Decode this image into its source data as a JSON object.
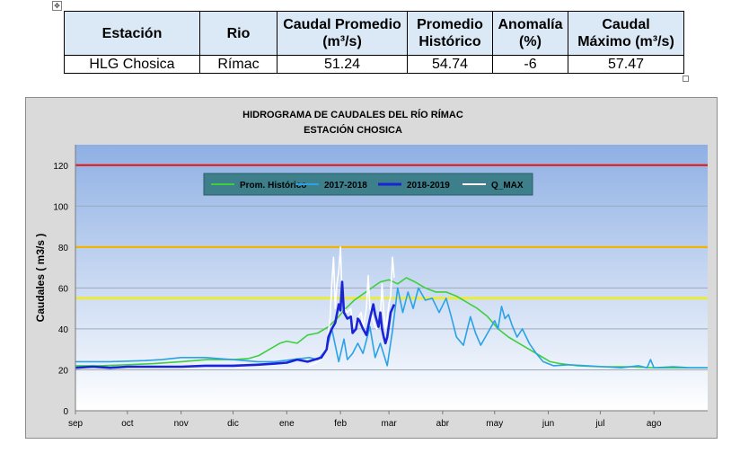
{
  "table": {
    "headers": [
      {
        "main": "Estación"
      },
      {
        "main": "Rio"
      },
      {
        "main": "Caudal Promedio",
        "unit": "(m³/s)"
      },
      {
        "main": "Promedio",
        "unit": "Histórico"
      },
      {
        "main": "Anomalía",
        "unit": "(%)"
      },
      {
        "main": "Caudal",
        "unit": "Máximo (m³/s)"
      }
    ],
    "row": [
      "HLG Chosica",
      "Rímac",
      "51.24",
      "54.74",
      "-6",
      "57.47"
    ]
  },
  "chart_data": {
    "type": "line",
    "title": "HIDROGRAMA DE CAUDALES DEL RÍO RÍMAC",
    "subtitle": "ESTACIÓN CHOSICA",
    "xlabel": "",
    "ylabel": "Caudales ( m3/s )",
    "ylim": [
      0,
      130
    ],
    "yticks": [
      0,
      20,
      40,
      60,
      80,
      100,
      120
    ],
    "xlim": [
      0,
      365
    ],
    "month_labels": [
      "sep",
      "oct",
      "nov",
      "dic",
      "ene",
      "feb",
      "mar",
      "abr",
      "may",
      "jun",
      "jul",
      "ago"
    ],
    "month_starts": [
      0,
      30,
      61,
      91,
      122,
      153,
      181,
      212,
      242,
      273,
      303,
      334
    ],
    "grid": true,
    "legend_position": "top-center",
    "reference_lines": [
      {
        "y": 120,
        "color": "#e02020"
      },
      {
        "y": 80,
        "color": "#f2b400"
      },
      {
        "y": 55,
        "color": "#f5f000"
      }
    ],
    "series": [
      {
        "name": "Prom. Histórico",
        "color": "#3ecf3e",
        "points": [
          [
            0,
            22
          ],
          [
            15,
            22
          ],
          [
            30,
            22.5
          ],
          [
            45,
            23
          ],
          [
            61,
            24
          ],
          [
            76,
            25
          ],
          [
            91,
            25
          ],
          [
            100,
            25.5
          ],
          [
            106,
            27
          ],
          [
            112,
            30
          ],
          [
            118,
            33
          ],
          [
            122,
            34
          ],
          [
            128,
            33
          ],
          [
            134,
            37
          ],
          [
            140,
            38
          ],
          [
            146,
            41
          ],
          [
            151,
            45
          ],
          [
            156,
            50
          ],
          [
            161,
            54
          ],
          [
            166,
            57
          ],
          [
            171,
            60
          ],
          [
            176,
            63
          ],
          [
            181,
            64
          ],
          [
            186,
            62
          ],
          [
            191,
            65
          ],
          [
            196,
            63
          ],
          [
            202,
            60
          ],
          [
            208,
            58
          ],
          [
            214,
            58
          ],
          [
            220,
            56
          ],
          [
            226,
            53
          ],
          [
            232,
            50
          ],
          [
            238,
            46
          ],
          [
            244,
            40
          ],
          [
            250,
            36
          ],
          [
            256,
            33
          ],
          [
            262,
            30
          ],
          [
            268,
            27
          ],
          [
            274,
            24
          ],
          [
            280,
            23
          ],
          [
            290,
            22
          ],
          [
            303,
            21.5
          ],
          [
            320,
            21.5
          ],
          [
            334,
            21
          ],
          [
            350,
            21
          ],
          [
            365,
            21
          ]
        ]
      },
      {
        "name": "2017-2018",
        "color": "#2aa2e6",
        "points": [
          [
            0,
            24
          ],
          [
            20,
            24
          ],
          [
            40,
            24.5
          ],
          [
            50,
            25
          ],
          [
            61,
            26
          ],
          [
            75,
            26
          ],
          [
            91,
            25
          ],
          [
            105,
            24
          ],
          [
            115,
            24
          ],
          [
            125,
            25
          ],
          [
            135,
            26
          ],
          [
            140,
            25
          ],
          [
            145,
            30
          ],
          [
            148,
            40
          ],
          [
            150,
            32
          ],
          [
            152,
            24
          ],
          [
            155,
            35
          ],
          [
            157,
            25
          ],
          [
            160,
            28
          ],
          [
            163,
            33
          ],
          [
            166,
            28
          ],
          [
            170,
            41
          ],
          [
            173,
            26
          ],
          [
            176,
            33
          ],
          [
            180,
            22
          ],
          [
            183,
            39
          ],
          [
            186,
            60
          ],
          [
            189,
            48
          ],
          [
            192,
            58
          ],
          [
            195,
            50
          ],
          [
            198,
            60
          ],
          [
            202,
            54
          ],
          [
            206,
            55
          ],
          [
            210,
            48
          ],
          [
            214,
            55
          ],
          [
            217,
            46
          ],
          [
            220,
            36
          ],
          [
            224,
            32
          ],
          [
            228,
            46
          ],
          [
            231,
            38
          ],
          [
            234,
            32
          ],
          [
            238,
            38
          ],
          [
            242,
            44
          ],
          [
            244,
            40
          ],
          [
            246,
            51
          ],
          [
            248,
            45
          ],
          [
            250,
            47
          ],
          [
            252,
            42
          ],
          [
            255,
            36
          ],
          [
            258,
            40
          ],
          [
            262,
            33
          ],
          [
            266,
            28
          ],
          [
            270,
            24
          ],
          [
            276,
            22
          ],
          [
            285,
            22.5
          ],
          [
            295,
            22
          ],
          [
            305,
            21.5
          ],
          [
            315,
            21
          ],
          [
            325,
            22
          ],
          [
            330,
            21
          ],
          [
            332,
            25
          ],
          [
            334,
            21
          ],
          [
            345,
            21.5
          ],
          [
            355,
            21
          ],
          [
            365,
            21
          ]
        ]
      },
      {
        "name": "2018-2019",
        "color": "#1a24d6",
        "points": [
          [
            0,
            21
          ],
          [
            10,
            21.5
          ],
          [
            20,
            21
          ],
          [
            30,
            21.5
          ],
          [
            45,
            21.5
          ],
          [
            61,
            21.5
          ],
          [
            75,
            22
          ],
          [
            91,
            22
          ],
          [
            105,
            22.5
          ],
          [
            115,
            23
          ],
          [
            122,
            23.5
          ],
          [
            128,
            25
          ],
          [
            134,
            24
          ],
          [
            138,
            25
          ],
          [
            142,
            26
          ],
          [
            145,
            30
          ],
          [
            146,
            36
          ],
          [
            148,
            40
          ],
          [
            150,
            43
          ],
          [
            152,
            52
          ],
          [
            153,
            49
          ],
          [
            154,
            63
          ],
          [
            155,
            48
          ],
          [
            157,
            45
          ],
          [
            159,
            46
          ],
          [
            160,
            38
          ],
          [
            162,
            40
          ],
          [
            163,
            45
          ],
          [
            164,
            44
          ],
          [
            166,
            40
          ],
          [
            168,
            37
          ],
          [
            170,
            45
          ],
          [
            172,
            52
          ],
          [
            173,
            47
          ],
          [
            175,
            41
          ],
          [
            176,
            48
          ],
          [
            177,
            40
          ],
          [
            178,
            36
          ],
          [
            179,
            33
          ],
          [
            180,
            36
          ],
          [
            182,
            48
          ],
          [
            184,
            52
          ]
        ]
      },
      {
        "name": "Q_MAX",
        "color": "#ffffff",
        "points": [
          [
            135,
            22
          ],
          [
            140,
            24
          ],
          [
            143,
            26
          ],
          [
            145,
            32
          ],
          [
            147,
            45
          ],
          [
            148,
            62
          ],
          [
            149,
            75
          ],
          [
            150,
            50
          ],
          [
            151,
            62
          ],
          [
            152,
            68
          ],
          [
            153,
            80
          ],
          [
            154,
            55
          ],
          [
            155,
            50
          ],
          [
            157,
            48
          ],
          [
            159,
            50
          ],
          [
            160,
            40
          ],
          [
            162,
            44
          ],
          [
            163,
            45
          ],
          [
            165,
            48
          ],
          [
            166,
            40
          ],
          [
            168,
            50
          ],
          [
            169,
            66
          ],
          [
            170,
            50
          ],
          [
            172,
            44
          ],
          [
            173,
            41
          ],
          [
            174,
            40
          ],
          [
            175,
            42
          ],
          [
            176,
            45
          ],
          [
            177,
            62
          ],
          [
            178,
            48
          ],
          [
            179,
            40
          ],
          [
            180,
            45
          ],
          [
            181,
            52
          ],
          [
            182,
            56
          ],
          [
            183,
            75
          ],
          [
            184,
            65
          ]
        ]
      }
    ]
  }
}
